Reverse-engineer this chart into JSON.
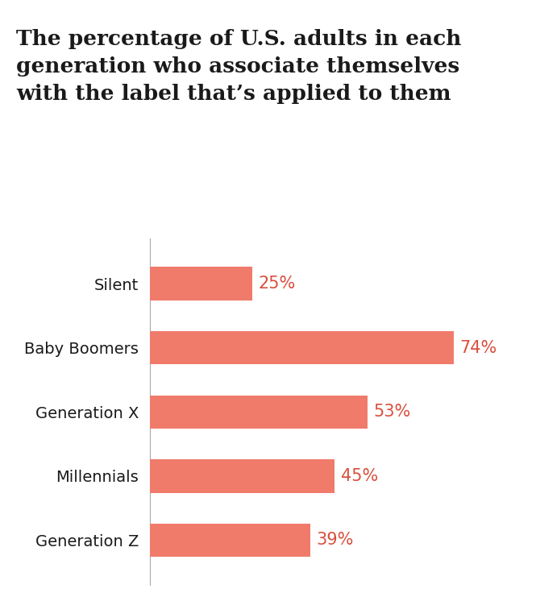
{
  "title_lines": [
    "The percentage of U.S. adults in each",
    "generation who associate themselves",
    "with the label that’s applied to them"
  ],
  "categories": [
    "Silent",
    "Baby Boomers",
    "Generation X",
    "Millennials",
    "Generation Z"
  ],
  "values": [
    25,
    74,
    53,
    45,
    39
  ],
  "bar_color": "#F07B6B",
  "label_color": "#D94F3D",
  "text_color": "#1a1a1a",
  "background_color": "#ffffff",
  "xlim": [
    0,
    85
  ],
  "bar_height": 0.52,
  "title_fontsize": 19,
  "label_fontsize": 15,
  "tick_fontsize": 14,
  "figsize": [
    6.65,
    7.41
  ],
  "dpi": 100
}
